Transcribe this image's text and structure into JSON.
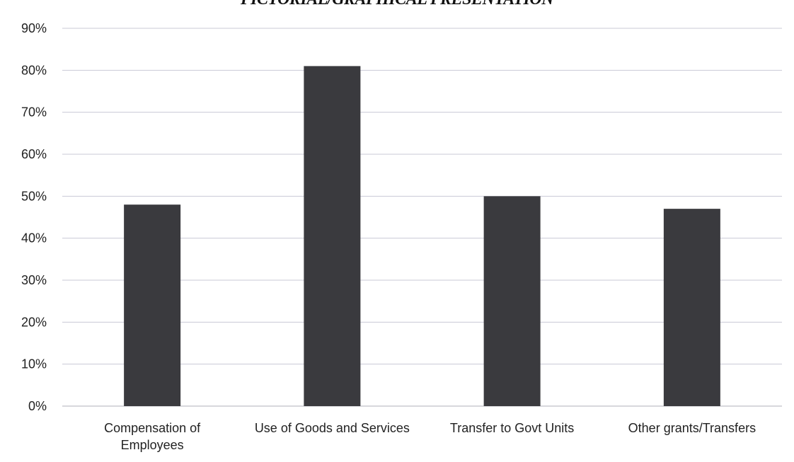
{
  "header": {
    "title": "PICTORIAL/GRAPHICAL PRESENTATION"
  },
  "colors": {
    "bar": "#3a3a3e",
    "grid": "#c9c9d6",
    "axis": "#b0b0b8"
  },
  "chart_data": {
    "type": "bar",
    "title": "",
    "xlabel": "",
    "ylabel": "",
    "categories": [
      "Compensation of Employees",
      "Use of Goods and Services",
      "Transfer to Govt Units",
      "Other grants/Transfers"
    ],
    "category_lines": [
      [
        "Compensation of",
        "Employees"
      ],
      [
        "Use of Goods and Services"
      ],
      [
        "Transfer to Govt Units"
      ],
      [
        "Other grants/Transfers"
      ]
    ],
    "values": [
      48,
      81,
      50,
      47
    ],
    "ylim": [
      0,
      90
    ],
    "yticks": [
      0,
      10,
      20,
      30,
      40,
      50,
      60,
      70,
      80,
      90
    ],
    "ytick_labels": [
      "0%",
      "10%",
      "20%",
      "30%",
      "40%",
      "50%",
      "60%",
      "70%",
      "80%",
      "90%"
    ],
    "grid": true,
    "legend": "none"
  }
}
